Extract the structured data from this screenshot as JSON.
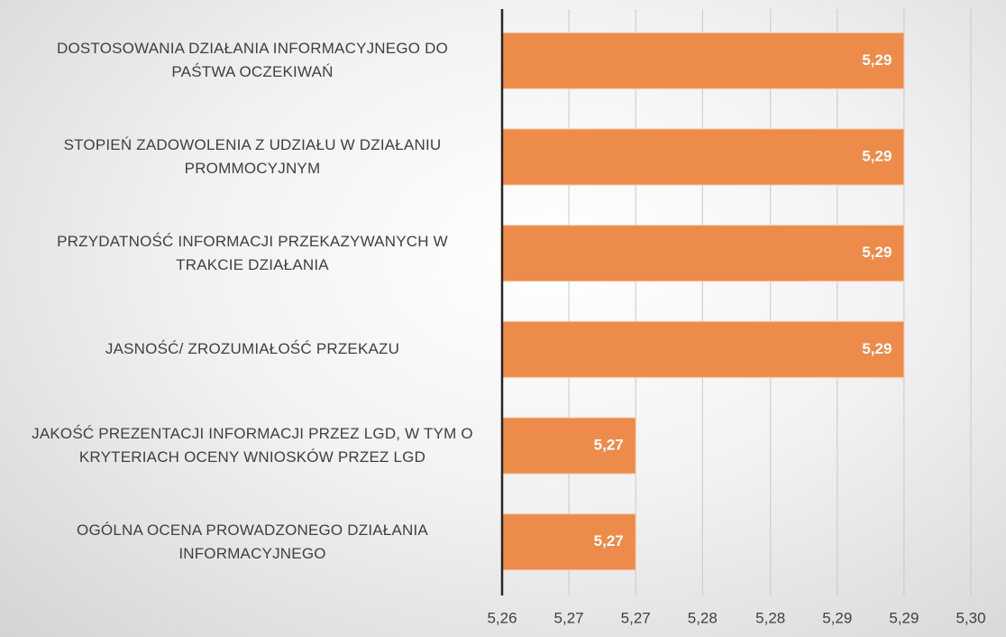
{
  "chart_data": {
    "type": "hbar",
    "categories": [
      "DOSTOSOWANIA DZIAŁANIA INFORMACYJNEGO DO PAŚTWA OCZEKIWAŃ",
      "STOPIEŃ ZADOWOLENIA Z UDZIAŁU W DZIAŁANIU PROMMOCYJNYM",
      "PRZYDATNOŚĆ INFORMACJI PRZEKAZYWANYCH W TRAKCIE DZIAŁANIA",
      "JASNOŚĆ/ ZROZUMIAŁOŚĆ PRZEKAZU",
      "JAKOŚĆ PREZENTACJI INFORMACJI PRZEZ LGD, W TYM O KRYTERIACH OCENY WNIOSKÓW PRZEZ LGD",
      "OGÓLNA OCENA PROWADZONEGO DZIAŁANIA INFORMACYJNEGO"
    ],
    "values": [
      5.2943,
      5.2943,
      5.2943,
      5.2943,
      5.2714,
      5.2714
    ],
    "value_labels": [
      "5,29",
      "5,29",
      "5,29",
      "5,29",
      "5,27",
      "5,27"
    ],
    "color": "#ed8b4a",
    "xlim": [
      5.26,
      5.3
    ],
    "xticks": [
      {
        "value": 5.26,
        "label": "5,26"
      },
      {
        "value": 5.2657,
        "label": "5,27"
      },
      {
        "value": 5.2714,
        "label": "5,27"
      },
      {
        "value": 5.2771,
        "label": "5,28"
      },
      {
        "value": 5.2829,
        "label": "5,28"
      },
      {
        "value": 5.2886,
        "label": "5,29"
      },
      {
        "value": 5.2943,
        "label": "5,29"
      },
      {
        "value": {
          "v": 5.3
        },
        "label": "5,30"
      }
    ],
    "grid": true
  }
}
